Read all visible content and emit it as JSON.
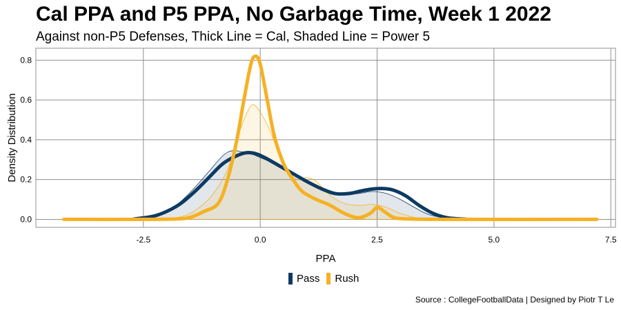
{
  "header": {
    "title": "Cal PPA and P5 PPA, No Garbage Time, Week 1 2022",
    "subtitle": "Against non-P5 Defenses, Thick Line = Cal, Shaded Line = Power 5"
  },
  "caption": "Source : CollegeFootballData | Designed by Piotr T Le",
  "colors": {
    "pass": "#0d3a62",
    "rush": "#f5b124",
    "grid": "#8f8f8f"
  },
  "chart_data": {
    "type": "area",
    "title": "Cal PPA and P5 PPA, No Garbage Time, Week 1 2022",
    "xlabel": "PPA",
    "ylabel": "Density Distribution",
    "xlim": [
      -4.8,
      7.6
    ],
    "ylim": [
      -0.04,
      0.86
    ],
    "x_ticks": [
      -2.5,
      0,
      2.5,
      5,
      7.5
    ],
    "x_tick_labels": [
      "-2.5",
      "0.0",
      "2.5",
      "5.0",
      "7.5"
    ],
    "y_ticks": [
      0,
      0.2,
      0.4,
      0.6,
      0.8
    ],
    "y_tick_labels": [
      "0.0",
      "0.2",
      "0.4",
      "0.6",
      "0.8"
    ],
    "legend": {
      "position": "bottom",
      "entries": [
        "Pass",
        "Rush"
      ]
    },
    "series": [
      {
        "name": "Pass",
        "group": "Cal",
        "style": "thick-line",
        "points": [
          [
            -2.7,
            0.002
          ],
          [
            -2.3,
            0.015
          ],
          [
            -2.0,
            0.04
          ],
          [
            -1.7,
            0.08
          ],
          [
            -1.4,
            0.14
          ],
          [
            -1.1,
            0.21
          ],
          [
            -0.8,
            0.28
          ],
          [
            -0.5,
            0.32
          ],
          [
            -0.3,
            0.335
          ],
          [
            -0.1,
            0.33
          ],
          [
            0.1,
            0.31
          ],
          [
            0.4,
            0.27
          ],
          [
            0.7,
            0.23
          ],
          [
            1.0,
            0.19
          ],
          [
            1.3,
            0.155
          ],
          [
            1.6,
            0.13
          ],
          [
            1.9,
            0.13
          ],
          [
            2.2,
            0.145
          ],
          [
            2.5,
            0.155
          ],
          [
            2.8,
            0.15
          ],
          [
            3.1,
            0.12
          ],
          [
            3.4,
            0.07
          ],
          [
            3.7,
            0.03
          ],
          [
            4.0,
            0.008
          ],
          [
            4.4,
            0.001
          ]
        ]
      },
      {
        "name": "Rush",
        "group": "Cal",
        "style": "thick-line",
        "points": [
          [
            -4.2,
            0.0
          ],
          [
            -2.5,
            0.0
          ],
          [
            -1.8,
            0.002
          ],
          [
            -1.5,
            0.01
          ],
          [
            -1.2,
            0.04
          ],
          [
            -0.9,
            0.08
          ],
          [
            -0.7,
            0.2
          ],
          [
            -0.5,
            0.4
          ],
          [
            -0.35,
            0.6
          ],
          [
            -0.2,
            0.78
          ],
          [
            -0.1,
            0.82
          ],
          [
            0.0,
            0.78
          ],
          [
            0.15,
            0.6
          ],
          [
            0.3,
            0.42
          ],
          [
            0.5,
            0.28
          ],
          [
            0.7,
            0.2
          ],
          [
            0.9,
            0.14
          ],
          [
            1.2,
            0.1
          ],
          [
            1.5,
            0.07
          ],
          [
            1.8,
            0.03
          ],
          [
            2.1,
            0.008
          ],
          [
            2.35,
            0.03
          ],
          [
            2.5,
            0.06
          ],
          [
            2.65,
            0.04
          ],
          [
            2.85,
            0.01
          ],
          [
            3.1,
            0.003
          ],
          [
            4.0,
            0.0
          ],
          [
            7.2,
            0.0
          ]
        ]
      },
      {
        "name": "Pass",
        "group": "Power 5",
        "style": "shaded",
        "points": [
          [
            -2.7,
            0.002
          ],
          [
            -2.3,
            0.015
          ],
          [
            -2.0,
            0.04
          ],
          [
            -1.7,
            0.09
          ],
          [
            -1.4,
            0.16
          ],
          [
            -1.1,
            0.24
          ],
          [
            -0.8,
            0.32
          ],
          [
            -0.6,
            0.345
          ],
          [
            -0.4,
            0.34
          ],
          [
            -0.2,
            0.33
          ],
          [
            0.0,
            0.31
          ],
          [
            0.3,
            0.28
          ],
          [
            0.6,
            0.24
          ],
          [
            0.9,
            0.2
          ],
          [
            1.2,
            0.16
          ],
          [
            1.5,
            0.13
          ],
          [
            1.8,
            0.125
          ],
          [
            2.1,
            0.13
          ],
          [
            2.4,
            0.14
          ],
          [
            2.7,
            0.13
          ],
          [
            3.0,
            0.1
          ],
          [
            3.3,
            0.06
          ],
          [
            3.6,
            0.025
          ],
          [
            4.0,
            0.006
          ],
          [
            4.4,
            0.001
          ]
        ]
      },
      {
        "name": "Rush",
        "group": "Power 5",
        "style": "shaded",
        "points": [
          [
            -2.5,
            0.0
          ],
          [
            -2.0,
            0.004
          ],
          [
            -1.6,
            0.02
          ],
          [
            -1.3,
            0.06
          ],
          [
            -1.0,
            0.13
          ],
          [
            -0.7,
            0.25
          ],
          [
            -0.5,
            0.4
          ],
          [
            -0.35,
            0.5
          ],
          [
            -0.2,
            0.57
          ],
          [
            -0.1,
            0.57
          ],
          [
            0.05,
            0.52
          ],
          [
            0.2,
            0.45
          ],
          [
            0.4,
            0.33
          ],
          [
            0.6,
            0.24
          ],
          [
            0.8,
            0.2
          ],
          [
            1.0,
            0.21
          ],
          [
            1.2,
            0.19
          ],
          [
            1.5,
            0.12
          ],
          [
            1.8,
            0.08
          ],
          [
            2.1,
            0.07
          ],
          [
            2.4,
            0.075
          ],
          [
            2.7,
            0.06
          ],
          [
            3.0,
            0.03
          ],
          [
            3.3,
            0.01
          ],
          [
            3.7,
            0.002
          ],
          [
            4.0,
            0.0
          ]
        ]
      }
    ]
  }
}
